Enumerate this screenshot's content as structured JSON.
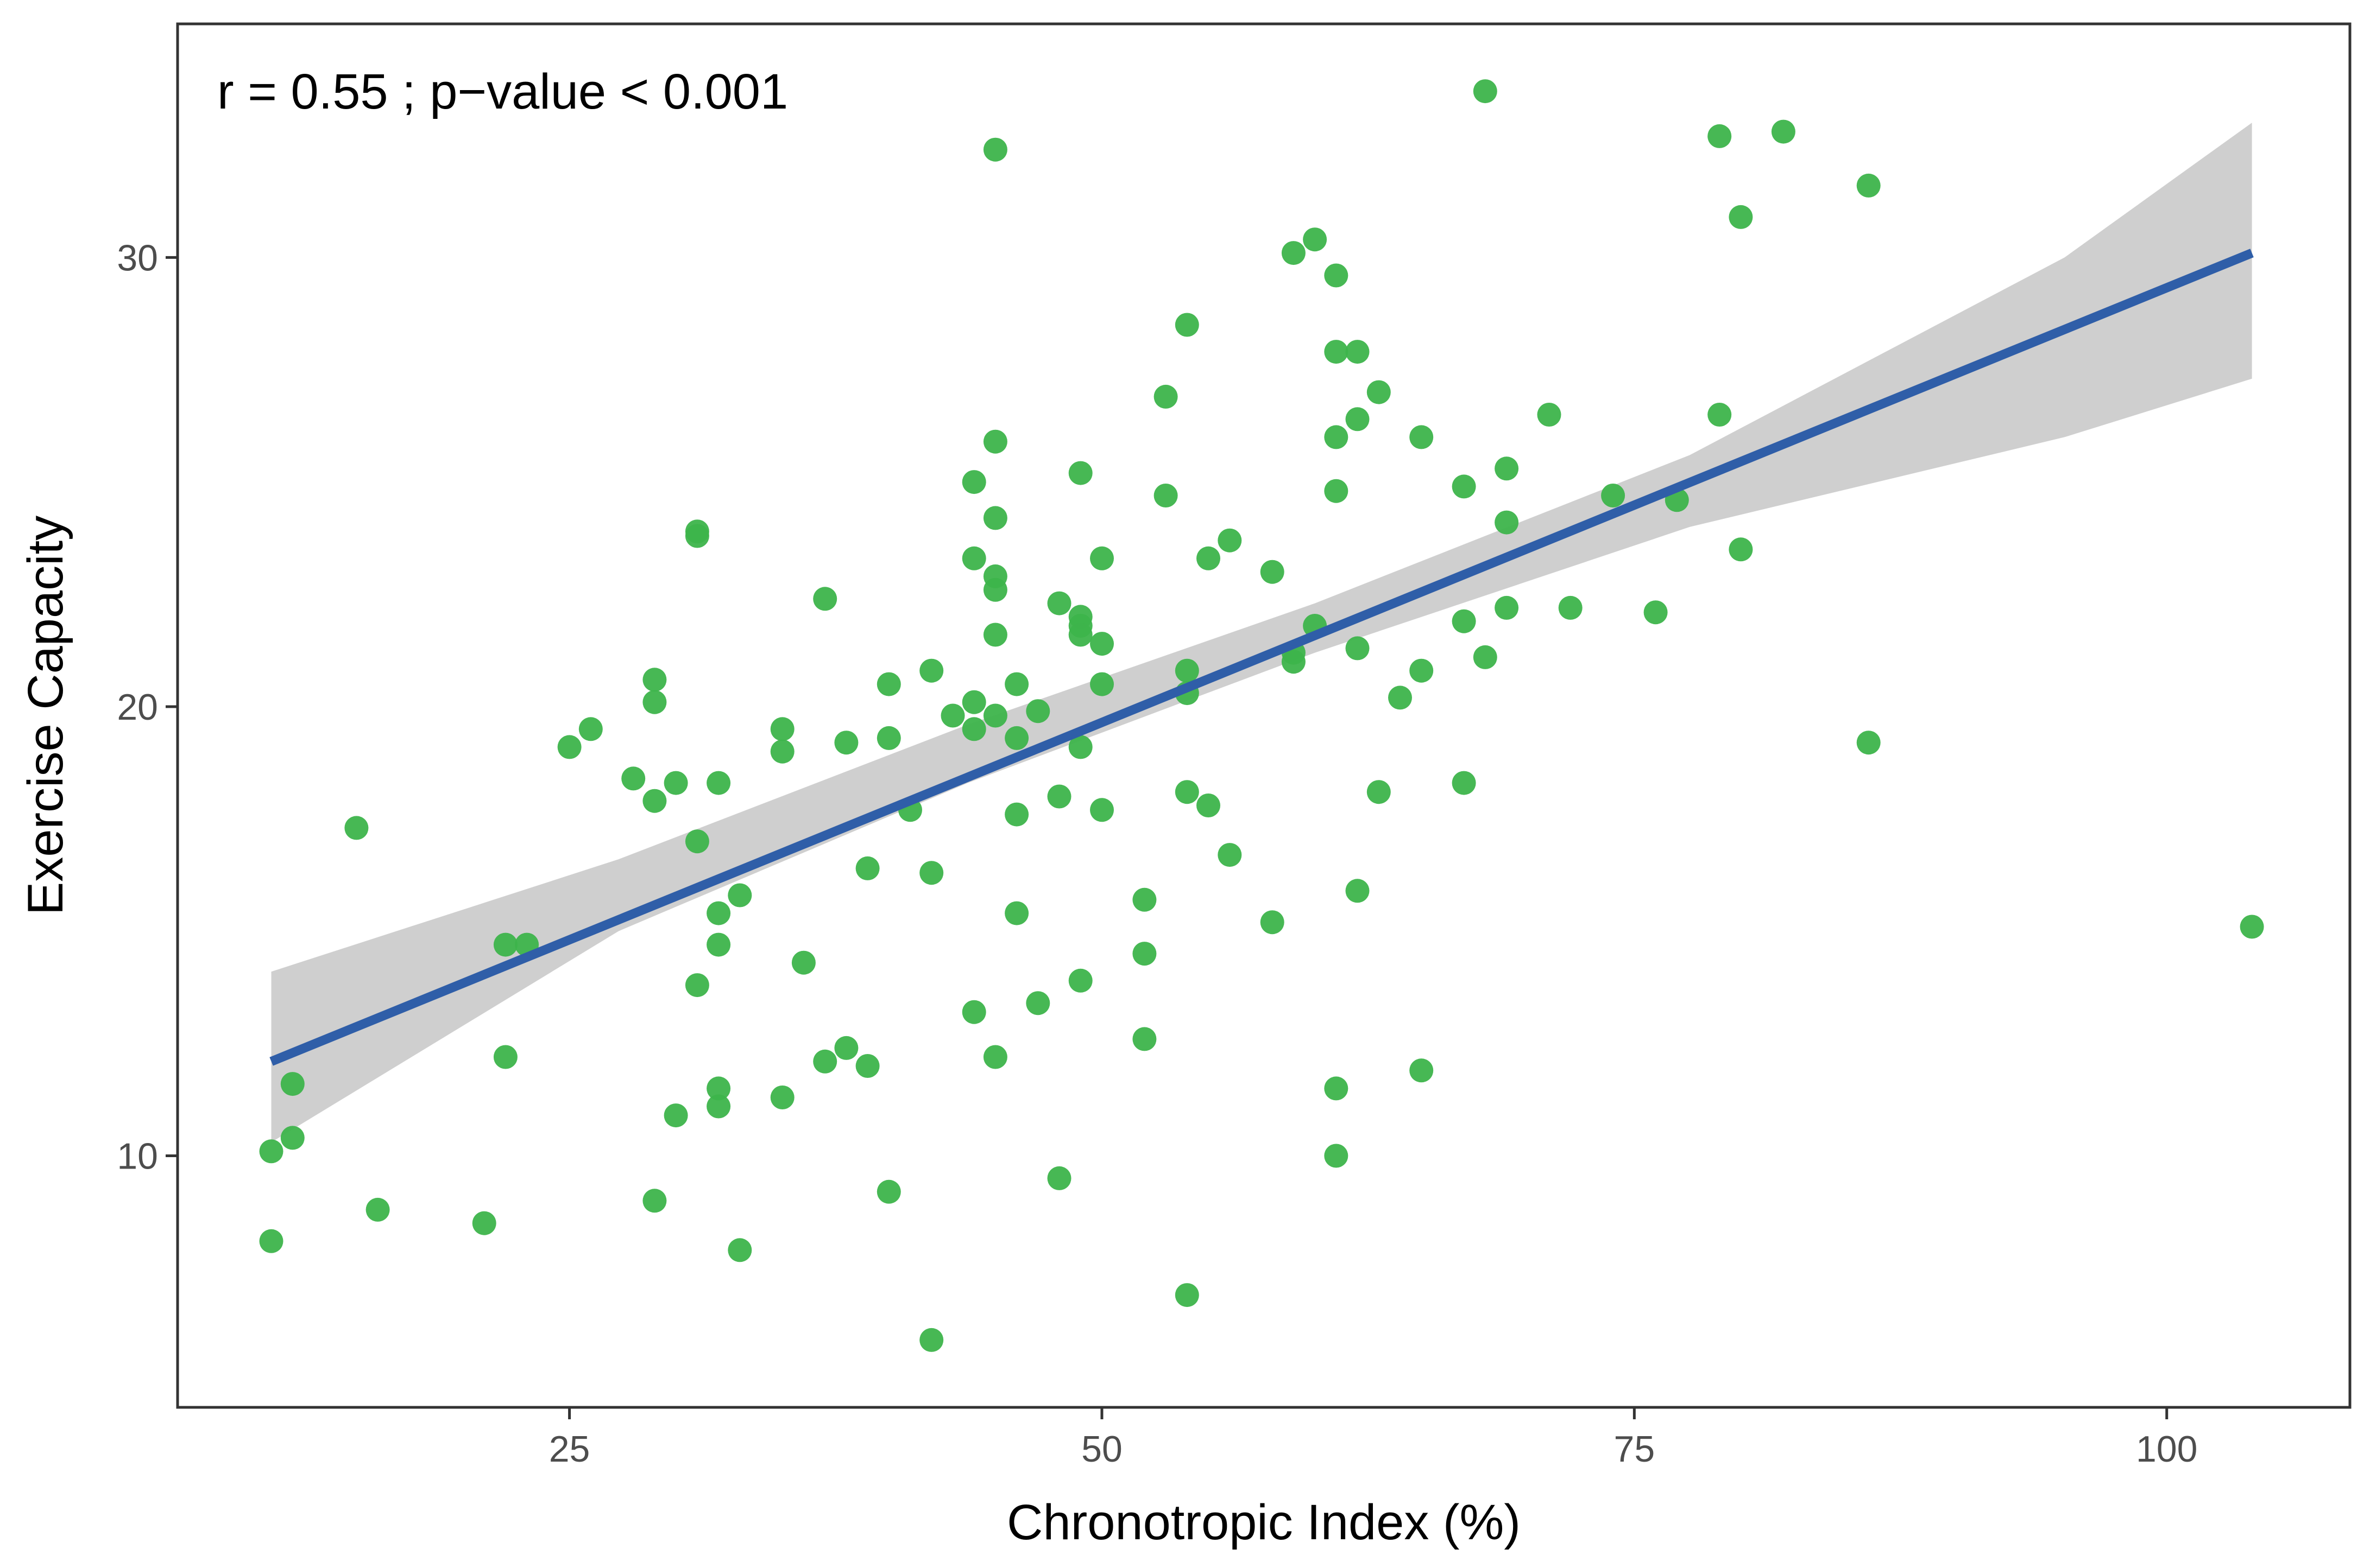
{
  "chart_data": {
    "type": "scatter",
    "title": "",
    "xlabel": "Chronotropic Index (%)",
    "ylabel": "Exercise Capacity",
    "annotation": "r = 0.55 ;  p−value < 0.001",
    "xlim": [
      6.6,
      108.6
    ],
    "ylim": [
      4.4,
      35.2
    ],
    "xticks": [
      25,
      50,
      75,
      100
    ],
    "yticks": [
      10,
      20,
      30
    ],
    "grid": false,
    "legend": "none",
    "colors": {
      "points": "#3db44b",
      "fit_line": "#2f5ea8",
      "confidence_band": "#cccccc",
      "frame": "#333333"
    },
    "fit": {
      "method": "linear",
      "x_start": 11,
      "x_end": 104,
      "y_start": 12.1,
      "y_end": 30.1,
      "ci_lower": [
        [
          11,
          10.3
        ],
        [
          27.3,
          15.0
        ],
        [
          43.7,
          18.3
        ],
        [
          60,
          21.2
        ],
        [
          77.6,
          24.0
        ],
        [
          95.2,
          26.0
        ],
        [
          104,
          27.3
        ]
      ],
      "ci_upper": [
        [
          104,
          33.0
        ],
        [
          95.2,
          30.0
        ],
        [
          77.6,
          25.6
        ],
        [
          60,
          22.3
        ],
        [
          43.7,
          19.6
        ],
        [
          27.3,
          16.6
        ],
        [
          11,
          14.1
        ]
      ]
    },
    "points": [
      {
        "x": 11,
        "y": 10.1
      },
      {
        "x": 11,
        "y": 8.1
      },
      {
        "x": 12,
        "y": 11.6
      },
      {
        "x": 12,
        "y": 10.4
      },
      {
        "x": 15,
        "y": 17.3
      },
      {
        "x": 16,
        "y": 8.8
      },
      {
        "x": 21,
        "y": 8.5
      },
      {
        "x": 22,
        "y": 14.7
      },
      {
        "x": 22,
        "y": 12.2
      },
      {
        "x": 23,
        "y": 14.7
      },
      {
        "x": 25,
        "y": 19.1
      },
      {
        "x": 26,
        "y": 19.5
      },
      {
        "x": 28,
        "y": 18.4
      },
      {
        "x": 29,
        "y": 20.6
      },
      {
        "x": 29,
        "y": 20.1
      },
      {
        "x": 29,
        "y": 17.9
      },
      {
        "x": 29,
        "y": 9.0
      },
      {
        "x": 30,
        "y": 18.3
      },
      {
        "x": 30,
        "y": 10.9
      },
      {
        "x": 31,
        "y": 23.9
      },
      {
        "x": 31,
        "y": 23.8
      },
      {
        "x": 31,
        "y": 17.0
      },
      {
        "x": 31,
        "y": 13.8
      },
      {
        "x": 32,
        "y": 18.3
      },
      {
        "x": 32,
        "y": 15.4
      },
      {
        "x": 32,
        "y": 14.7
      },
      {
        "x": 32,
        "y": 11.5
      },
      {
        "x": 32,
        "y": 11.1
      },
      {
        "x": 33,
        "y": 15.8
      },
      {
        "x": 33,
        "y": 7.9
      },
      {
        "x": 35,
        "y": 19.5
      },
      {
        "x": 35,
        "y": 19.0
      },
      {
        "x": 35,
        "y": 11.3
      },
      {
        "x": 36,
        "y": 14.3
      },
      {
        "x": 37,
        "y": 22.4
      },
      {
        "x": 37,
        "y": 12.1
      },
      {
        "x": 38,
        "y": 19.2
      },
      {
        "x": 38,
        "y": 12.4
      },
      {
        "x": 39,
        "y": 16.4
      },
      {
        "x": 39,
        "y": 12.0
      },
      {
        "x": 40,
        "y": 20.5
      },
      {
        "x": 40,
        "y": 19.3
      },
      {
        "x": 40,
        "y": 9.2
      },
      {
        "x": 41,
        "y": 17.7
      },
      {
        "x": 42,
        "y": 20.8
      },
      {
        "x": 42,
        "y": 16.3
      },
      {
        "x": 42,
        "y": 5.9
      },
      {
        "x": 43,
        "y": 19.8
      },
      {
        "x": 44,
        "y": 25.0
      },
      {
        "x": 44,
        "y": 23.3
      },
      {
        "x": 44,
        "y": 20.1
      },
      {
        "x": 44,
        "y": 19.5
      },
      {
        "x": 44,
        "y": 13.2
      },
      {
        "x": 45,
        "y": 32.4
      },
      {
        "x": 45,
        "y": 25.9
      },
      {
        "x": 45,
        "y": 24.2
      },
      {
        "x": 45,
        "y": 22.9
      },
      {
        "x": 45,
        "y": 22.6
      },
      {
        "x": 45,
        "y": 21.6
      },
      {
        "x": 45,
        "y": 19.8
      },
      {
        "x": 45,
        "y": 12.2
      },
      {
        "x": 46,
        "y": 20.5
      },
      {
        "x": 46,
        "y": 19.3
      },
      {
        "x": 46,
        "y": 17.6
      },
      {
        "x": 46,
        "y": 15.4
      },
      {
        "x": 47,
        "y": 19.9
      },
      {
        "x": 47,
        "y": 13.4
      },
      {
        "x": 48,
        "y": 22.3
      },
      {
        "x": 48,
        "y": 18.0
      },
      {
        "x": 48,
        "y": 9.5
      },
      {
        "x": 49,
        "y": 25.2
      },
      {
        "x": 49,
        "y": 22.0
      },
      {
        "x": 49,
        "y": 21.8
      },
      {
        "x": 49,
        "y": 21.6
      },
      {
        "x": 49,
        "y": 19.1
      },
      {
        "x": 49,
        "y": 13.9
      },
      {
        "x": 50,
        "y": 23.3
      },
      {
        "x": 50,
        "y": 21.4
      },
      {
        "x": 50,
        "y": 20.5
      },
      {
        "x": 50,
        "y": 17.7
      },
      {
        "x": 52,
        "y": 15.7
      },
      {
        "x": 52,
        "y": 14.5
      },
      {
        "x": 52,
        "y": 12.6
      },
      {
        "x": 53,
        "y": 26.9
      },
      {
        "x": 53,
        "y": 24.7
      },
      {
        "x": 54,
        "y": 28.5
      },
      {
        "x": 54,
        "y": 20.8
      },
      {
        "x": 54,
        "y": 20.3
      },
      {
        "x": 54,
        "y": 18.1
      },
      {
        "x": 54,
        "y": 6.9
      },
      {
        "x": 55,
        "y": 23.3
      },
      {
        "x": 55,
        "y": 17.8
      },
      {
        "x": 56,
        "y": 23.7
      },
      {
        "x": 56,
        "y": 16.7
      },
      {
        "x": 58,
        "y": 23.0
      },
      {
        "x": 58,
        "y": 15.2
      },
      {
        "x": 59,
        "y": 30.1
      },
      {
        "x": 59,
        "y": 21.0
      },
      {
        "x": 59,
        "y": 21.2
      },
      {
        "x": 60,
        "y": 30.4
      },
      {
        "x": 60,
        "y": 21.8
      },
      {
        "x": 61,
        "y": 29.6
      },
      {
        "x": 61,
        "y": 27.9
      },
      {
        "x": 61,
        "y": 26.0
      },
      {
        "x": 61,
        "y": 24.8
      },
      {
        "x": 61,
        "y": 11.5
      },
      {
        "x": 61,
        "y": 10.0
      },
      {
        "x": 62,
        "y": 27.9
      },
      {
        "x": 62,
        "y": 26.4
      },
      {
        "x": 62,
        "y": 21.3
      },
      {
        "x": 62,
        "y": 15.9
      },
      {
        "x": 63,
        "y": 27.0
      },
      {
        "x": 63,
        "y": 18.1
      },
      {
        "x": 64,
        "y": 20.2
      },
      {
        "x": 65,
        "y": 26.0
      },
      {
        "x": 65,
        "y": 20.8
      },
      {
        "x": 65,
        "y": 11.9
      },
      {
        "x": 67,
        "y": 24.9
      },
      {
        "x": 67,
        "y": 21.9
      },
      {
        "x": 67,
        "y": 18.3
      },
      {
        "x": 68,
        "y": 33.7
      },
      {
        "x": 68,
        "y": 21.1
      },
      {
        "x": 69,
        "y": 25.3
      },
      {
        "x": 69,
        "y": 24.1
      },
      {
        "x": 69,
        "y": 22.2
      },
      {
        "x": 71,
        "y": 26.5
      },
      {
        "x": 72,
        "y": 22.2
      },
      {
        "x": 74,
        "y": 24.7
      },
      {
        "x": 76,
        "y": 22.1
      },
      {
        "x": 77,
        "y": 24.6
      },
      {
        "x": 79,
        "y": 32.7
      },
      {
        "x": 79,
        "y": 26.5
      },
      {
        "x": 80,
        "y": 30.9
      },
      {
        "x": 80,
        "y": 23.5
      },
      {
        "x": 82,
        "y": 32.8
      },
      {
        "x": 86,
        "y": 31.6
      },
      {
        "x": 86,
        "y": 19.2
      },
      {
        "x": 104,
        "y": 15.1
      }
    ]
  }
}
